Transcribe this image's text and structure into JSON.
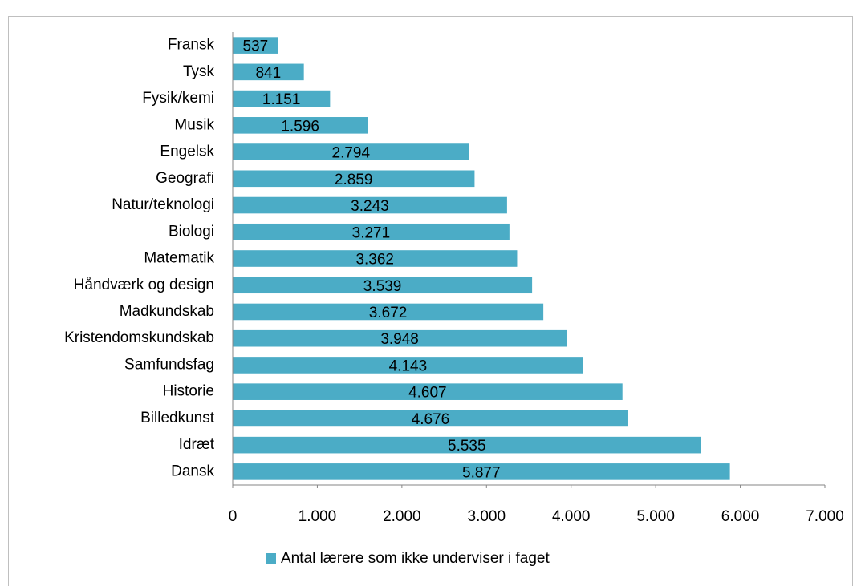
{
  "chart_data": {
    "type": "bar",
    "orientation": "horizontal",
    "categories": [
      "Fransk",
      "Tysk",
      "Fysik/kemi",
      "Musik",
      "Engelsk",
      "Geografi",
      "Natur/teknologi",
      "Biologi",
      "Matematik",
      "Håndværk og design",
      "Madkundskab",
      "Kristendomskundskab",
      "Samfundsfag",
      "Historie",
      "Billedkunst",
      "Idræt",
      "Dansk"
    ],
    "series": [
      {
        "name": "Antal lærere som ikke underviser i faget",
        "color": "#4bacc6",
        "values": [
          537,
          841,
          1151,
          1596,
          2794,
          2859,
          3243,
          3271,
          3362,
          3539,
          3672,
          3948,
          4143,
          4607,
          4676,
          5535,
          5877
        ],
        "value_labels": [
          "537",
          "841",
          "1.151",
          "1.596",
          "2.794",
          "2.859",
          "3.243",
          "3.271",
          "3.362",
          "3.539",
          "3.672",
          "3.948",
          "4.143",
          "4.607",
          "4.676",
          "5.535",
          "5.877"
        ]
      }
    ],
    "xlim": [
      0,
      7000
    ],
    "xticks": [
      0,
      {
        "value": 1000,
        "label": "1.000"
      },
      {
        "value": 2000,
        "label": "2.000"
      },
      {
        "value": 3000,
        "label": "3.000"
      },
      {
        "value": 4000,
        "label": "4.000"
      },
      {
        "value": 5000,
        "label": "5.000"
      },
      {
        "value": 6000,
        "label": "6.000"
      },
      {
        "value": 7000,
        "label": "7.000"
      }
    ],
    "legend": "bottom"
  }
}
